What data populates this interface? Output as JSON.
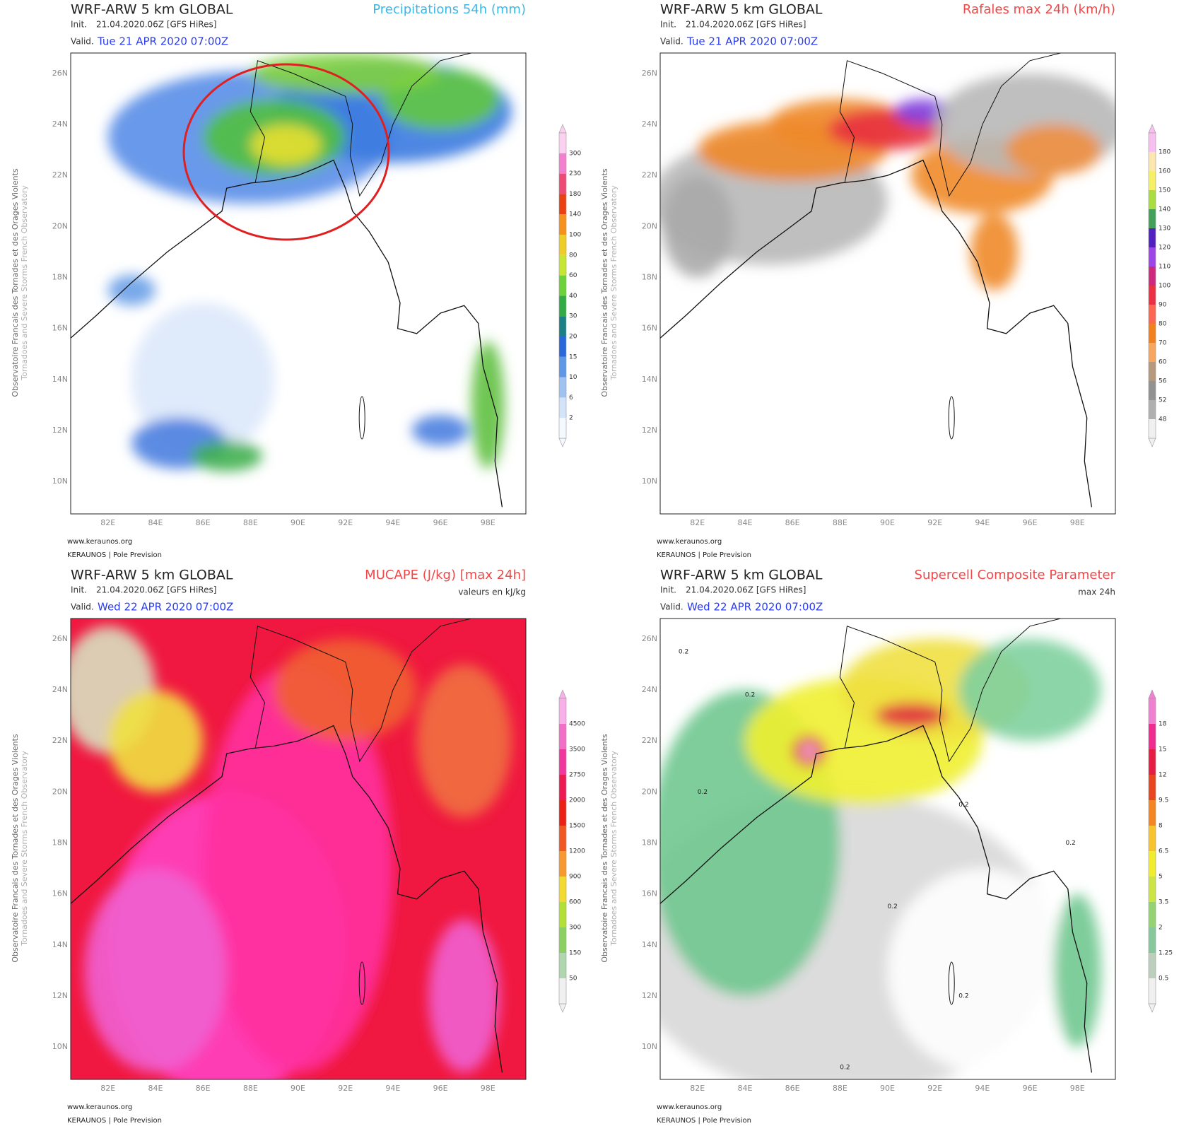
{
  "common": {
    "model_title": "WRF-ARW 5 km GLOBAL",
    "init_label": "Init.",
    "init_value": "21.04.2020.06Z [GFS HiRes]",
    "valid_label": "Valid.",
    "side_text_fr": "Observatoire Francais des Tornades et des Orages Violents",
    "side_text_en": "Tornadoes and Severe Storms French Observatory",
    "footer_url": "www.keraunos.org",
    "footer_org": "KERAUNOS | Pole Prevision",
    "lon_labels": [
      "82E",
      "84E",
      "86E",
      "88E",
      "90E",
      "92E",
      "94E",
      "96E",
      "98E"
    ],
    "lat_labels": [
      "26N",
      "24N",
      "22N",
      "20N",
      "18N",
      "16N",
      "14N",
      "12N",
      "10N"
    ]
  },
  "panels": [
    {
      "product": "Precipitations 54h (mm)",
      "valid_date": "Tue 21 APR 2020 07:00Z",
      "colorbar_labels": [
        "2",
        "6",
        "10",
        "15",
        "20",
        "30",
        "40",
        "60",
        "80",
        "100",
        "140",
        "180",
        "230",
        "300"
      ]
    },
    {
      "product": "Rafales max 24h (km/h)",
      "valid_date": "Tue 21 APR 2020 07:00Z",
      "colorbar_labels": [
        "48",
        "52",
        "56",
        "60",
        "70",
        "80",
        "90",
        "100",
        "110",
        "120",
        "130",
        "140",
        "150",
        "160",
        "180"
      ]
    },
    {
      "product": "MUCAPE (J/kg) [max 24h]",
      "note": "valeurs en kJ/kg",
      "valid_date": "Wed 22 APR 2020 07:00Z",
      "colorbar_labels": [
        "50",
        "150",
        "300",
        "600",
        "900",
        "1200",
        "1500",
        "2000",
        "2750",
        "3500",
        "4500"
      ]
    },
    {
      "product": "Supercell Composite Parameter",
      "note": "max 24h",
      "valid_date": "Wed 22 APR 2020 07:00Z",
      "colorbar_labels": [
        "0.5",
        "1.25",
        "2",
        "3.5",
        "5",
        "6.5",
        "8",
        "9.5",
        "12",
        "15",
        "18"
      ],
      "contour_label": "0.2"
    }
  ]
}
